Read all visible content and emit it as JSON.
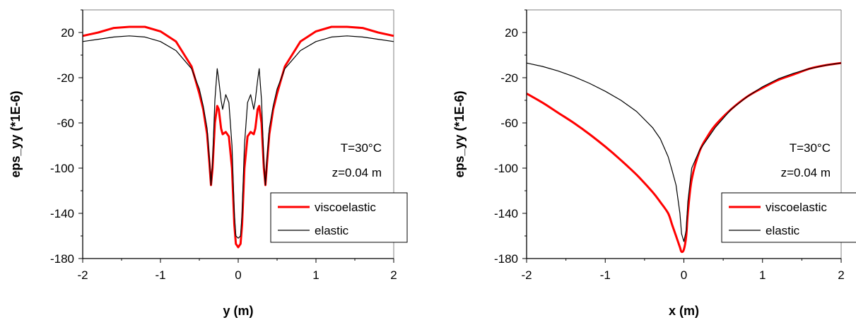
{
  "chart_data": [
    {
      "type": "line",
      "xlabel": "y (m)",
      "ylabel": "eps_yy (*1E-6)",
      "xlim": [
        -2,
        2
      ],
      "ylim": [
        -180,
        40
      ],
      "xticks": [
        -2,
        -1,
        0,
        1,
        2
      ],
      "yticks": [
        -180,
        -140,
        -100,
        -60,
        -20,
        20
      ],
      "grid": false,
      "legend_position": "bottom-right",
      "annotations": [
        "T=30°C",
        "z=0.04 m"
      ],
      "series": [
        {
          "name": "viscoelastic",
          "color": "#ff0000",
          "x": [
            -2,
            -1.8,
            -1.6,
            -1.4,
            -1.2,
            -1.0,
            -0.8,
            -0.6,
            -0.5,
            -0.45,
            -0.4,
            -0.37,
            -0.35,
            -0.33,
            -0.3,
            -0.27,
            -0.25,
            -0.22,
            -0.2,
            -0.16,
            -0.12,
            -0.08,
            -0.05,
            -0.03,
            0,
            0.03,
            0.05,
            0.08,
            0.12,
            0.16,
            0.2,
            0.22,
            0.25,
            0.27,
            0.3,
            0.33,
            0.35,
            0.37,
            0.4,
            0.45,
            0.5,
            0.6,
            0.8,
            1.0,
            1.2,
            1.4,
            1.6,
            1.8,
            2
          ],
          "y": [
            17,
            20,
            24,
            25,
            25,
            21,
            12,
            -10,
            -34,
            -48,
            -70,
            -96,
            -115,
            -100,
            -60,
            -45,
            -48,
            -65,
            -70,
            -68,
            -72,
            -100,
            -150,
            -167,
            -170,
            -167,
            -150,
            -100,
            -72,
            -68,
            -70,
            -65,
            -48,
            -45,
            -60,
            -100,
            -115,
            -96,
            -70,
            -48,
            -34,
            -10,
            12,
            21,
            25,
            25,
            24,
            20,
            17
          ]
        },
        {
          "name": "elastic",
          "color": "#000000",
          "x": [
            -2,
            -1.8,
            -1.6,
            -1.4,
            -1.2,
            -1.0,
            -0.8,
            -0.6,
            -0.5,
            -0.45,
            -0.4,
            -0.37,
            -0.35,
            -0.33,
            -0.3,
            -0.27,
            -0.25,
            -0.22,
            -0.2,
            -0.16,
            -0.12,
            -0.08,
            -0.05,
            -0.03,
            0,
            0.03,
            0.05,
            0.08,
            0.12,
            0.16,
            0.2,
            0.22,
            0.25,
            0.27,
            0.3,
            0.33,
            0.35,
            0.37,
            0.4,
            0.45,
            0.5,
            0.6,
            0.8,
            1.0,
            1.2,
            1.4,
            1.6,
            1.8,
            2
          ],
          "y": [
            12,
            14,
            16,
            17,
            16,
            12,
            4,
            -12,
            -30,
            -45,
            -65,
            -92,
            -115,
            -95,
            -40,
            -12,
            -22,
            -40,
            -48,
            -35,
            -42,
            -80,
            -140,
            -160,
            -162,
            -160,
            -140,
            -80,
            -42,
            -35,
            -48,
            -40,
            -22,
            -12,
            -40,
            -95,
            -115,
            -92,
            -65,
            -45,
            -30,
            -12,
            4,
            12,
            16,
            17,
            16,
            14,
            12
          ]
        }
      ]
    },
    {
      "type": "line",
      "xlabel": "x (m)",
      "ylabel": "eps_yy (*1E-6)",
      "xlim": [
        -2,
        2
      ],
      "ylim": [
        -180,
        40
      ],
      "xticks": [
        -2,
        -1,
        0,
        1,
        2
      ],
      "yticks": [
        -180,
        -140,
        -100,
        -60,
        -20,
        20
      ],
      "grid": false,
      "legend_position": "bottom-right",
      "annotations": [
        "T=30°C",
        "z=0.04 m"
      ],
      "series": [
        {
          "name": "viscoelastic",
          "color": "#ff0000",
          "x": [
            -2,
            -1.8,
            -1.6,
            -1.4,
            -1.2,
            -1.0,
            -0.8,
            -0.6,
            -0.4,
            -0.3,
            -0.2,
            -0.15,
            -0.1,
            -0.05,
            -0.03,
            0,
            0.03,
            0.05,
            0.1,
            0.2,
            0.3,
            0.4,
            0.6,
            0.8,
            1.0,
            1.2,
            1.4,
            1.6,
            1.8,
            2
          ],
          "y": [
            -34,
            -42,
            -51,
            -60,
            -70,
            -81,
            -93,
            -106,
            -121,
            -130,
            -140,
            -150,
            -160,
            -170,
            -174,
            -172,
            -160,
            -140,
            -110,
            -85,
            -72,
            -62,
            -48,
            -37,
            -29,
            -22,
            -17,
            -12,
            -9,
            -7
          ],
          "smooth": true
        },
        {
          "name": "elastic",
          "color": "#000000",
          "x": [
            -2,
            -1.8,
            -1.6,
            -1.4,
            -1.2,
            -1.0,
            -0.8,
            -0.6,
            -0.4,
            -0.3,
            -0.2,
            -0.15,
            -0.1,
            -0.05,
            -0.03,
            0,
            0.03,
            0.05,
            0.1,
            0.2,
            0.3,
            0.4,
            0.6,
            0.8,
            1.0,
            1.2,
            1.4,
            1.6,
            1.8,
            2
          ],
          "y": [
            -7,
            -10,
            -14,
            -19,
            -25,
            -32,
            -40,
            -50,
            -64,
            -74,
            -90,
            -102,
            -115,
            -140,
            -158,
            -165,
            -155,
            -130,
            -100,
            -84,
            -74,
            -64,
            -48,
            -37,
            -28,
            -21,
            -16,
            -12,
            -9,
            -7
          ]
        }
      ]
    }
  ]
}
